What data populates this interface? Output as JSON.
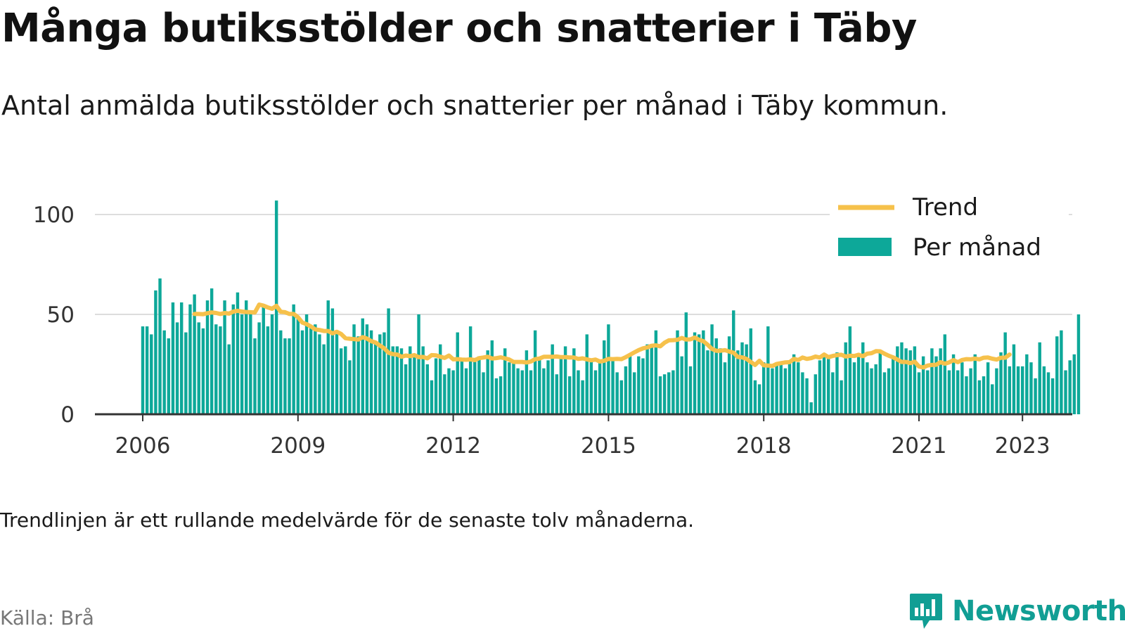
{
  "title": "Många butiksstölder och snatterier i Täby",
  "subtitle": "Antal anmälda butiksstölder och snatterier per månad i Täby kommun.",
  "note": "Trendlinjen är ett rullande medelvärde för de senaste tolv månaderna.",
  "source": "Källa: Brå",
  "brand": {
    "name": "Newsworthy",
    "logo_icon": "bar-chart-speech-bubble-icon",
    "color": "#119e94"
  },
  "chart_data": {
    "type": "bar",
    "title": "",
    "xlabel": "",
    "ylabel": "",
    "ylim": [
      0,
      100
    ],
    "y_ticks": [
      0,
      50,
      100
    ],
    "x_ticks": [
      {
        "label": "2006",
        "date": "2006-01"
      },
      {
        "label": "2009",
        "date": "2009-01"
      },
      {
        "label": "2012",
        "date": "2012-01"
      },
      {
        "label": "2015",
        "date": "2015-01"
      },
      {
        "label": "2018",
        "date": "2018-01"
      },
      {
        "label": "2021",
        "date": "2021-01"
      },
      {
        "label": "2023",
        "date": "2023-01"
      }
    ],
    "grid": true,
    "legend_position": "top-right",
    "colors": {
      "bars": "#0da899",
      "trend": "#f6c14b",
      "axis": "#333333",
      "grid": "#dddddd"
    },
    "series": [
      {
        "name": "Per månad",
        "kind": "bar",
        "start": "2006-01",
        "values": [
          44,
          44,
          40,
          62,
          68,
          42,
          38,
          56,
          46,
          56,
          41,
          55,
          60,
          46,
          43,
          57,
          63,
          45,
          44,
          57,
          35,
          55,
          61,
          50,
          57,
          52,
          38,
          46,
          55,
          44,
          50,
          107,
          42,
          38,
          38,
          55,
          49,
          42,
          50,
          44,
          45,
          40,
          35,
          57,
          53,
          41,
          33,
          34,
          27,
          45,
          39,
          48,
          45,
          42,
          35,
          40,
          41,
          53,
          34,
          34,
          33,
          25,
          34,
          30,
          50,
          34,
          25,
          17,
          28,
          35,
          20,
          23,
          22,
          41,
          27,
          23,
          44,
          28,
          29,
          21,
          32,
          37,
          18,
          19,
          33,
          26,
          27,
          23,
          22,
          32,
          22,
          42,
          28,
          23,
          27,
          35,
          20,
          28,
          34,
          19,
          33,
          22,
          17,
          40,
          27,
          22,
          26,
          37,
          45,
          27,
          21,
          17,
          24,
          30,
          21,
          29,
          28,
          35,
          34,
          42,
          19,
          20,
          21,
          22,
          42,
          29,
          51,
          24,
          41,
          40,
          42,
          32,
          45,
          38,
          33,
          26,
          39,
          52,
          32,
          36,
          35,
          43,
          17,
          15,
          26,
          44,
          23,
          26,
          25,
          23,
          27,
          30,
          26,
          21,
          18,
          6,
          20,
          27,
          30,
          29,
          21,
          31,
          17,
          36,
          44,
          26,
          30,
          36,
          26,
          23,
          25,
          31,
          21,
          23,
          29,
          34,
          36,
          33,
          32,
          34,
          21,
          29,
          22,
          33,
          29,
          33,
          40,
          22,
          30,
          22,
          26,
          19,
          23,
          30,
          17,
          19,
          26,
          15,
          23,
          31,
          41,
          24,
          35,
          24,
          24,
          30,
          26,
          18,
          36,
          24,
          21,
          18,
          39,
          42,
          22,
          27,
          30,
          50
        ]
      },
      {
        "name": "Trend",
        "kind": "line",
        "start": "2007-01",
        "values": [
          50.2,
          50.2,
          50.1,
          50.6,
          51.0,
          50.7,
          50.2,
          50.7,
          50.4,
          51.4,
          51.8,
          51.4,
          51.2,
          51.1,
          51.0,
          54.9,
          54.4,
          53.5,
          52.8,
          54.3,
          51.3,
          51.1,
          50.2,
          50.2,
          48.6,
          45.9,
          45.1,
          43.9,
          42.5,
          42.2,
          41.7,
          41.7,
          40.5,
          41.3,
          40.2,
          38.1,
          37.8,
          37.6,
          37.4,
          38.6,
          37.9,
          36.6,
          35.9,
          34.4,
          33.0,
          30.8,
          30.1,
          29.9,
          28.8,
          29.4,
          29.1,
          29.6,
          28.6,
          28.7,
          28.0,
          29.6,
          29.5,
          28.8,
          28.2,
          29.4,
          27.5,
          27.6,
          27.4,
          27.3,
          27.5,
          27.1,
          28.1,
          28.4,
          28.8,
          27.9,
          28.1,
          28.5,
          28.0,
          27.4,
          26.2,
          26.2,
          26.2,
          25.9,
          26.4,
          27.6,
          27.9,
          28.8,
          28.8,
          28.8,
          28.9,
          28.6,
          28.6,
          28.4,
          28.4,
          27.7,
          28.0,
          27.5,
          27.0,
          27.4,
          26.4,
          26.8,
          27.7,
          27.6,
          27.7,
          27.6,
          28.6,
          29.8,
          31.0,
          32.1,
          33.0,
          33.5,
          34.3,
          34.5,
          34.0,
          35.8,
          37.0,
          37.1,
          37.3,
          38.2,
          37.4,
          37.5,
          38.4,
          37.3,
          36.6,
          34.8,
          32.7,
          31.8,
          31.8,
          32.1,
          31.4,
          30.8,
          28.7,
          28.5,
          27.7,
          26.2,
          24.7,
          26.8,
          24.5,
          24.4,
          24.2,
          25.2,
          25.6,
          26.0,
          26.1,
          27.7,
          27.2,
          28.4,
          27.7,
          28.1,
          28.9,
          28.4,
          29.9,
          28.6,
          29.2,
          29.6,
          29.8,
          28.9,
          29.3,
          29.2,
          29.8,
          29.1,
          30.3,
          30.6,
          31.6,
          31.5,
          30.3,
          29.3,
          28.5,
          27.4,
          26.2,
          26.2,
          25.6,
          26.3,
          23.9,
          23.4,
          24.4,
          24.7,
          24.8,
          26.1,
          25.3,
          26.0,
          27.1,
          26.1,
          27.2,
          27.6,
          27.5,
          27.9,
          27.5,
          28.3,
          28.4,
          27.8,
          27.4,
          28.3,
          28.3,
          29.9
        ]
      }
    ]
  }
}
